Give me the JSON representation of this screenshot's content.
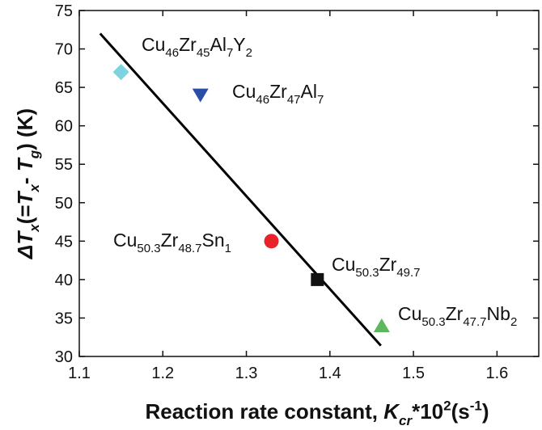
{
  "chart_data": {
    "type": "scatter",
    "x_label": [
      {
        "text": "Reaction rate constant, "
      },
      {
        "text": "K",
        "italic": true
      },
      {
        "text": "cr",
        "sub": true,
        "italic": true
      },
      {
        "text": "*10"
      },
      {
        "text": "2",
        "sup": true
      },
      {
        "text": "(s"
      },
      {
        "text": "-1",
        "sup": true
      },
      {
        "text": ")"
      }
    ],
    "y_label": [
      {
        "text": "Δ",
        "italic": true
      },
      {
        "text": "T",
        "italic": true
      },
      {
        "text": "x",
        "sub": true,
        "italic": true
      },
      {
        "text": "(="
      },
      {
        "text": "T",
        "italic": true
      },
      {
        "text": "x",
        "sub": true,
        "italic": true
      },
      {
        "text": "- "
      },
      {
        "text": "T",
        "italic": true
      },
      {
        "text": "g",
        "sub": true,
        "italic": true
      },
      {
        "text": ") (K)"
      }
    ],
    "xlim": [
      1.1,
      1.65
    ],
    "ylim": [
      30,
      75
    ],
    "xticks": [
      1.1,
      1.2,
      1.3,
      1.4,
      1.5,
      1.6
    ],
    "yticks": [
      30,
      35,
      40,
      45,
      50,
      55,
      60,
      65,
      70,
      75
    ],
    "points": [
      {
        "label": [
          {
            "text": "Cu"
          },
          {
            "text": "46",
            "sub": true
          },
          {
            "text": "Zr"
          },
          {
            "text": "45",
            "sub": true
          },
          {
            "text": "Al"
          },
          {
            "text": "7",
            "sub": true
          },
          {
            "text": "Y"
          },
          {
            "text": "2",
            "sub": true
          }
        ],
        "x": 1.15,
        "y": 67,
        "marker": "diamond",
        "color": "#7dd3e0"
      },
      {
        "label": [
          {
            "text": "Cu"
          },
          {
            "text": "46",
            "sub": true
          },
          {
            "text": "Zr"
          },
          {
            "text": "47",
            "sub": true
          },
          {
            "text": "Al"
          },
          {
            "text": "7",
            "sub": true
          }
        ],
        "x": 1.245,
        "y": 64,
        "marker": "triangle-down",
        "color": "#2a4ea6"
      },
      {
        "label": [
          {
            "text": "Cu"
          },
          {
            "text": "50.3",
            "sub": true
          },
          {
            "text": "Zr"
          },
          {
            "text": "48.7",
            "sub": true
          },
          {
            "text": "Sn"
          },
          {
            "text": "1",
            "sub": true
          }
        ],
        "x": 1.33,
        "y": 45,
        "marker": "circle",
        "color": "#e8232a"
      },
      {
        "label": [
          {
            "text": "Cu"
          },
          {
            "text": "50.3",
            "sub": true
          },
          {
            "text": "Zr"
          },
          {
            "text": "49.7",
            "sub": true
          }
        ],
        "x": 1.385,
        "y": 40,
        "marker": "square",
        "color": "#111111"
      },
      {
        "label": [
          {
            "text": "Cu"
          },
          {
            "text": "50.3",
            "sub": true
          },
          {
            "text": "Zr"
          },
          {
            "text": "47.7",
            "sub": true
          },
          {
            "text": "Nb"
          },
          {
            "text": "2",
            "sub": true
          }
        ],
        "x": 1.462,
        "y": 34,
        "marker": "triangle-up",
        "color": "#5cb85c"
      }
    ],
    "fit_line": {
      "x": [
        1.125,
        1.461
      ],
      "y": [
        72,
        31.4
      ],
      "color": "#000000"
    }
  }
}
